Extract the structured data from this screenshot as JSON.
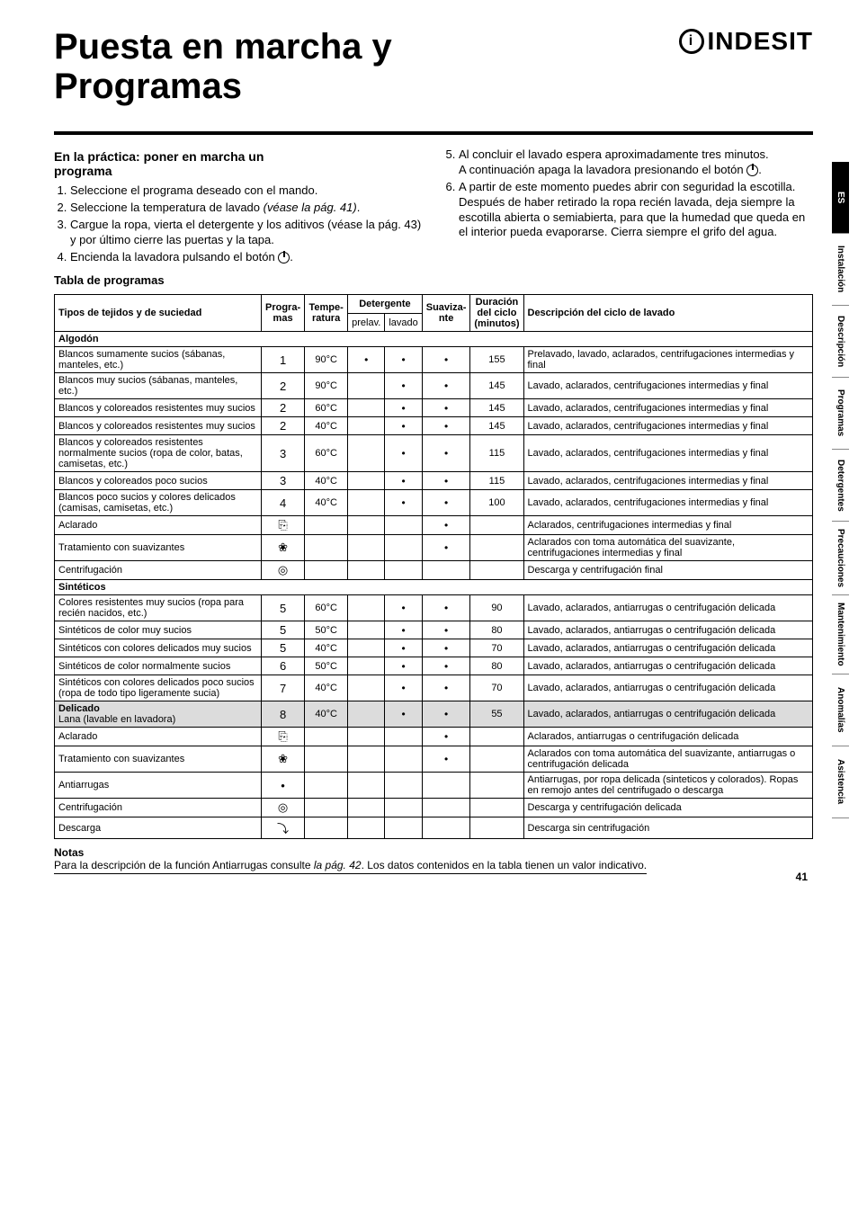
{
  "header": {
    "title_line1": "Puesta en marcha y",
    "title_line2": "Programas",
    "brand": "INDESIT"
  },
  "left_col": {
    "heading_line1": "En la práctica:  poner en marcha un",
    "heading_line2": "programa",
    "step1": "Seleccione el programa deseado con el mando.",
    "step2_a": "Seleccione la temperatura de lavado ",
    "step2_b": "(véase la pág. 41)",
    "step2_c": ".",
    "step3": "Cargue la ropa, vierta el detergente y los aditivos (véase la pág. 43) y por último cierre las puertas y la tapa.",
    "step4_a": "Encienda la lavadora pulsando el botón ",
    "step4_b": "."
  },
  "right_col": {
    "step5_a": "Al concluir el lavado espera aproximadamente tres minutos.",
    "step5_b": "A continuación apaga la lavadora presionando el botón ",
    "step5_c": ".",
    "step6": "A partir de este momento puedes abrir con seguridad la escotilla. Después de haber retirado la ropa recién lavada, deja siempre la escotilla abierta o semiabierta, para que la humedad que queda en el interior pueda evaporarse. Cierra siempre el grifo del agua."
  },
  "table_title": "Tabla de programas",
  "columns": {
    "c1": "Tipos de tejidos y de suciedad",
    "c2_a": "Progra-",
    "c2_b": "mas",
    "c3_a": "Tempe-",
    "c3_b": "ratura",
    "c4": "Detergente",
    "c4a": "prelav.",
    "c4b": "lavado",
    "c5_a": "Suaviza-",
    "c5_b": "nte",
    "c6_a": "Duración",
    "c6_b": "del ciclo",
    "c6_c": "(minutos)",
    "c7": "Descripción del ciclo de lavado"
  },
  "sections": {
    "s1": "Algodón",
    "s2": "Sintéticos",
    "s3": "Delicado"
  },
  "rows": [
    {
      "desc": "Blancos sumamente sucios (sábanas, manteles, etc.)",
      "prog": "1",
      "temp": "90°C",
      "pre": "•",
      "lav": "•",
      "suav": "•",
      "dur": "155",
      "cycle": "Prelavado, lavado, aclarados, centrifugaciones intermedias y final"
    },
    {
      "desc": "Blancos muy sucios (sábanas, manteles, etc.)",
      "prog": "2",
      "temp": "90°C",
      "pre": "",
      "lav": "•",
      "suav": "•",
      "dur": "145",
      "cycle": "Lavado, aclarados, centrifugaciones intermedias y final"
    },
    {
      "desc": "Blancos y coloreados resistentes muy sucios",
      "prog": "2",
      "temp": "60°C",
      "pre": "",
      "lav": "•",
      "suav": "•",
      "dur": "145",
      "cycle": "Lavado, aclarados, centrifugaciones intermedias y final"
    },
    {
      "desc": "Blancos y coloreados resistentes muy sucios",
      "prog": "2",
      "temp": "40°C",
      "pre": "",
      "lav": "•",
      "suav": "•",
      "dur": "145",
      "cycle": "Lavado, aclarados, centrifugaciones intermedias y final"
    },
    {
      "desc": "Blancos y coloreados resistentes normalmente sucios (ropa de color, batas, camisetas, etc.)",
      "prog": "3",
      "temp": "60°C",
      "pre": "",
      "lav": "•",
      "suav": "•",
      "dur": "115",
      "cycle": "Lavado, aclarados, centrifugaciones intermedias y final"
    },
    {
      "desc": "Blancos y coloreados poco sucios",
      "prog": "3",
      "temp": "40°C",
      "pre": "",
      "lav": "•",
      "suav": "•",
      "dur": "115",
      "cycle": "Lavado, aclarados, centrifugaciones intermedias y final"
    },
    {
      "desc": "Blancos poco sucios y colores delicados (camisas, camisetas, etc.)",
      "prog": "4",
      "temp": "40°C",
      "pre": "",
      "lav": "•",
      "suav": "•",
      "dur": "100",
      "cycle": "Lavado, aclarados, centrifugaciones intermedias y final"
    },
    {
      "desc": "Aclarado",
      "prog": "sym-rinse",
      "temp": "",
      "pre": "",
      "lav": "",
      "suav": "•",
      "dur": "",
      "cycle": "Aclarados, centrifugaciones intermedias y final"
    },
    {
      "desc": "Tratamiento con suavizantes",
      "prog": "sym-flower",
      "temp": "",
      "pre": "",
      "lav": "",
      "suav": "•",
      "dur": "",
      "cycle": "Aclarados con toma automática del suavizante, centrifugaciones intermedias y final"
    },
    {
      "desc": "Centrifugación",
      "prog": "sym-spin",
      "temp": "",
      "pre": "",
      "lav": "",
      "suav": "",
      "dur": "",
      "cycle": "Descarga y centrifugación final"
    },
    {
      "desc": "Colores resistentes muy sucios (ropa para recién nacidos, etc.)",
      "prog": "5",
      "temp": "60°C",
      "pre": "",
      "lav": "•",
      "suav": "•",
      "dur": "90",
      "cycle": "Lavado, aclarados, antiarrugas o centrifugación delicada"
    },
    {
      "desc": "Sintéticos de color muy sucios",
      "prog": "5",
      "temp": "50°C",
      "pre": "",
      "lav": "•",
      "suav": "•",
      "dur": "80",
      "cycle": "Lavado, aclarados, antiarrugas o centrifugación delicada"
    },
    {
      "desc": "Sintéticos con colores delicados muy sucios",
      "prog": "5",
      "temp": "40°C",
      "pre": "",
      "lav": "•",
      "suav": "•",
      "dur": "70",
      "cycle": "Lavado, aclarados, antiarrugas o centrifugación delicada"
    },
    {
      "desc": "Sintéticos de color normalmente sucios",
      "prog": "6",
      "temp": "50°C",
      "pre": "",
      "lav": "•",
      "suav": "•",
      "dur": "80",
      "cycle": "Lavado, aclarados, antiarrugas o centrifugación delicada"
    },
    {
      "desc": "Sintéticos con colores delicados poco sucios (ropa de todo tipo ligeramente sucia)",
      "prog": "7",
      "temp": "40°C",
      "pre": "",
      "lav": "•",
      "suav": "•",
      "dur": "70",
      "cycle": "Lavado, aclarados, antiarrugas o centrifugación delicada"
    },
    {
      "desc": "Lana (lavable en lavadora)",
      "prog": "8",
      "temp": "40°C",
      "pre": "",
      "lav": "•",
      "suav": "•",
      "dur": "55",
      "cycle": "Lavado, aclarados, antiarrugas o centrifugación delicada",
      "shade": true,
      "bold": true,
      "bold_label": "Delicado"
    },
    {
      "desc": "Aclarado",
      "prog": "sym-rinse",
      "temp": "",
      "pre": "",
      "lav": "",
      "suav": "•",
      "dur": "",
      "cycle": "Aclarados, antiarrugas o centrifugación delicada"
    },
    {
      "desc": "Tratamiento con suavizantes",
      "prog": "sym-flower",
      "temp": "",
      "pre": "",
      "lav": "",
      "suav": "•",
      "dur": "",
      "cycle": "Aclarados con toma automática del suavizante, antiarrugas o centrifugación delicada"
    },
    {
      "desc": "Antiarrugas",
      "prog": "•",
      "temp": "",
      "pre": "",
      "lav": "",
      "suav": "",
      "dur": "",
      "cycle": "Antiarrugas, por ropa delicada (sinteticos y colorados). Ropas en remojo antes del centrifugado o descarga"
    },
    {
      "desc": "Centrifugación",
      "prog": "sym-spin",
      "temp": "",
      "pre": "",
      "lav": "",
      "suav": "",
      "dur": "",
      "cycle": "Descarga y centrifugación delicada"
    },
    {
      "desc": "Descarga",
      "prog": "sym-drain",
      "temp": "",
      "pre": "",
      "lav": "",
      "suav": "",
      "dur": "",
      "cycle": "Descarga sin centrifugación"
    }
  ],
  "notes": {
    "title": "Notas",
    "body_a": "Para la descripción de la función Antiarrugas consulte ",
    "body_b": "la pág. 42",
    "body_c": ". Los datos contenidos en la tabla tienen un valor indicativo."
  },
  "tabs": [
    "ES",
    "Instalación",
    "Descripción",
    "Programas",
    "Detergentes",
    "Precauciones",
    "Mantenimiento",
    "Anomalías",
    "Asistencia"
  ],
  "page_number": "41"
}
